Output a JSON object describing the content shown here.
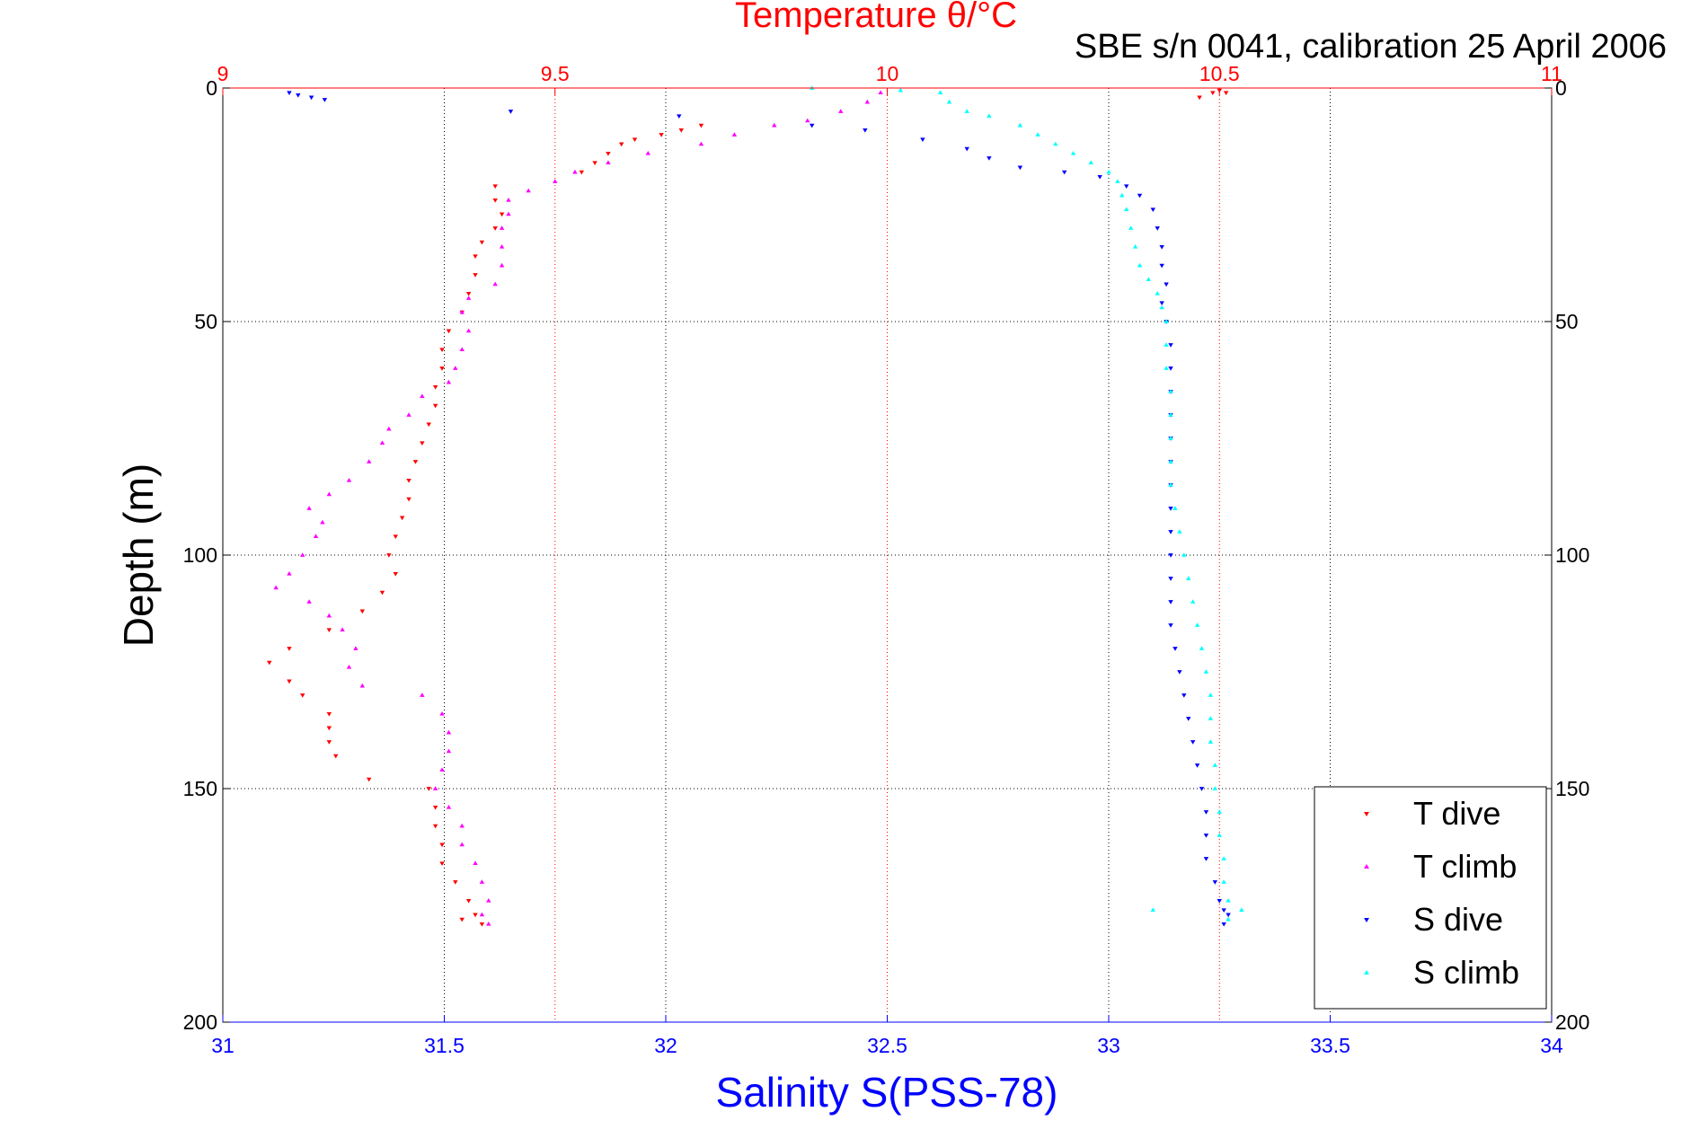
{
  "chart_data": {
    "type": "scatter",
    "title": "Temperature θ/°C",
    "subtitle": "SBE s/n 0041, calibration 25 April 2006",
    "xlabel_bottom": "Salinity S(PSS-78)",
    "xlabel_top": "Temperature θ/°C",
    "ylabel": "Depth (m)",
    "ylim": [
      0,
      200
    ],
    "y_inverted": true,
    "y_ticks": [
      "0",
      "50",
      "100",
      "150",
      "200"
    ],
    "x_bottom_lim": [
      31,
      34
    ],
    "x_bottom_ticks": [
      "31",
      "31.5",
      "32",
      "32.5",
      "33",
      "33.5",
      "34"
    ],
    "x_top_lim": [
      9,
      11
    ],
    "x_top_ticks": [
      "9",
      "9.5",
      "10",
      "10.5",
      "11"
    ],
    "grid": true,
    "legend_position": "bottom-right",
    "colors": {
      "T dive": "#ff0000",
      "T climb": "#ff00ff",
      "S dive": "#0000ff",
      "S climb": "#00ffff",
      "top_axis": "#ff0000",
      "bottom_axis": "#0000ff"
    },
    "series": [
      {
        "name": "T dive",
        "axis": "temperature",
        "marker": "triangle-down",
        "points": [
          [
            10.47,
            2
          ],
          [
            10.49,
            1
          ],
          [
            10.5,
            0.5
          ],
          [
            10.51,
            1
          ],
          [
            9.72,
            8
          ],
          [
            9.69,
            9
          ],
          [
            9.66,
            10
          ],
          [
            9.62,
            11
          ],
          [
            9.6,
            12
          ],
          [
            9.58,
            14
          ],
          [
            9.56,
            16
          ],
          [
            9.54,
            18
          ],
          [
            9.41,
            21
          ],
          [
            9.41,
            24
          ],
          [
            9.42,
            27
          ],
          [
            9.41,
            30
          ],
          [
            9.39,
            33
          ],
          [
            9.38,
            36
          ],
          [
            9.38,
            40
          ],
          [
            9.37,
            44
          ],
          [
            9.36,
            48
          ],
          [
            9.34,
            52
          ],
          [
            9.33,
            56
          ],
          [
            9.33,
            60
          ],
          [
            9.32,
            64
          ],
          [
            9.32,
            68
          ],
          [
            9.31,
            72
          ],
          [
            9.3,
            76
          ],
          [
            9.29,
            80
          ],
          [
            9.28,
            84
          ],
          [
            9.28,
            88
          ],
          [
            9.27,
            92
          ],
          [
            9.26,
            96
          ],
          [
            9.25,
            100
          ],
          [
            9.26,
            104
          ],
          [
            9.24,
            108
          ],
          [
            9.21,
            112
          ],
          [
            9.16,
            116
          ],
          [
            9.1,
            120
          ],
          [
            9.07,
            123
          ],
          [
            9.1,
            127
          ],
          [
            9.12,
            130
          ],
          [
            9.16,
            134
          ],
          [
            9.16,
            137
          ],
          [
            9.16,
            140
          ],
          [
            9.17,
            143
          ],
          [
            9.22,
            148
          ],
          [
            9.31,
            150
          ],
          [
            9.32,
            154
          ],
          [
            9.32,
            158
          ],
          [
            9.33,
            162
          ],
          [
            9.33,
            166
          ],
          [
            9.35,
            170
          ],
          [
            9.37,
            174
          ],
          [
            9.38,
            177
          ],
          [
            9.36,
            178
          ],
          [
            9.39,
            179
          ]
        ]
      },
      {
        "name": "T climb",
        "axis": "temperature",
        "marker": "triangle-up",
        "points": [
          [
            9.99,
            1
          ],
          [
            9.97,
            3
          ],
          [
            9.93,
            5
          ],
          [
            9.88,
            7
          ],
          [
            9.83,
            8
          ],
          [
            9.77,
            10
          ],
          [
            9.72,
            12
          ],
          [
            9.64,
            14
          ],
          [
            9.58,
            16
          ],
          [
            9.53,
            18
          ],
          [
            9.5,
            20
          ],
          [
            9.46,
            22
          ],
          [
            9.43,
            24
          ],
          [
            9.43,
            27
          ],
          [
            9.42,
            30
          ],
          [
            9.42,
            34
          ],
          [
            9.42,
            38
          ],
          [
            9.41,
            42
          ],
          [
            9.37,
            45
          ],
          [
            9.36,
            48
          ],
          [
            9.37,
            52
          ],
          [
            9.36,
            56
          ],
          [
            9.35,
            60
          ],
          [
            9.34,
            63
          ],
          [
            9.3,
            66
          ],
          [
            9.28,
            70
          ],
          [
            9.25,
            73
          ],
          [
            9.24,
            76
          ],
          [
            9.22,
            80
          ],
          [
            9.19,
            84
          ],
          [
            9.16,
            87
          ],
          [
            9.13,
            90
          ],
          [
            9.15,
            93
          ],
          [
            9.14,
            96
          ],
          [
            9.12,
            100
          ],
          [
            9.1,
            104
          ],
          [
            9.08,
            107
          ],
          [
            9.13,
            110
          ],
          [
            9.16,
            113
          ],
          [
            9.18,
            116
          ],
          [
            9.2,
            120
          ],
          [
            9.19,
            124
          ],
          [
            9.21,
            128
          ],
          [
            9.3,
            130
          ],
          [
            9.33,
            134
          ],
          [
            9.34,
            138
          ],
          [
            9.34,
            142
          ],
          [
            9.33,
            146
          ],
          [
            9.32,
            150
          ],
          [
            9.34,
            154
          ],
          [
            9.36,
            158
          ],
          [
            9.36,
            162
          ],
          [
            9.38,
            166
          ],
          [
            9.39,
            170
          ],
          [
            9.4,
            174
          ],
          [
            9.39,
            177
          ],
          [
            9.4,
            179
          ]
        ]
      },
      {
        "name": "S dive",
        "axis": "salinity",
        "marker": "triangle-down",
        "points": [
          [
            31.15,
            1
          ],
          [
            31.17,
            1.5
          ],
          [
            31.2,
            2
          ],
          [
            31.23,
            2.5
          ],
          [
            31.65,
            5
          ],
          [
            32.03,
            6
          ],
          [
            32.33,
            8
          ],
          [
            32.45,
            9
          ],
          [
            32.58,
            11
          ],
          [
            32.68,
            13
          ],
          [
            32.73,
            15
          ],
          [
            32.8,
            17
          ],
          [
            32.9,
            18
          ],
          [
            32.98,
            19
          ],
          [
            33.04,
            21
          ],
          [
            33.07,
            23
          ],
          [
            33.1,
            26
          ],
          [
            33.11,
            30
          ],
          [
            33.12,
            34
          ],
          [
            33.12,
            38
          ],
          [
            33.13,
            42
          ],
          [
            33.12,
            46
          ],
          [
            33.13,
            50
          ],
          [
            33.14,
            55
          ],
          [
            33.14,
            60
          ],
          [
            33.14,
            65
          ],
          [
            33.14,
            70
          ],
          [
            33.14,
            75
          ],
          [
            33.14,
            80
          ],
          [
            33.14,
            85
          ],
          [
            33.14,
            90
          ],
          [
            33.14,
            95
          ],
          [
            33.14,
            100
          ],
          [
            33.14,
            105
          ],
          [
            33.14,
            110
          ],
          [
            33.14,
            115
          ],
          [
            33.15,
            120
          ],
          [
            33.16,
            125
          ],
          [
            33.17,
            130
          ],
          [
            33.18,
            135
          ],
          [
            33.19,
            140
          ],
          [
            33.2,
            145
          ],
          [
            33.21,
            150
          ],
          [
            33.22,
            155
          ],
          [
            33.22,
            160
          ],
          [
            33.22,
            165
          ],
          [
            33.24,
            170
          ],
          [
            33.25,
            174
          ],
          [
            33.26,
            176
          ],
          [
            33.27,
            177
          ],
          [
            33.26,
            179
          ]
        ]
      },
      {
        "name": "S climb",
        "axis": "salinity",
        "marker": "triangle-up",
        "points": [
          [
            32.33,
            0
          ],
          [
            32.53,
            0.5
          ],
          [
            32.62,
            1
          ],
          [
            32.64,
            3
          ],
          [
            32.68,
            5
          ],
          [
            32.73,
            6
          ],
          [
            32.8,
            8
          ],
          [
            32.84,
            10
          ],
          [
            32.88,
            12
          ],
          [
            32.92,
            14
          ],
          [
            32.96,
            16
          ],
          [
            33,
            18
          ],
          [
            33.02,
            20
          ],
          [
            33.03,
            23
          ],
          [
            33.04,
            26
          ],
          [
            33.05,
            30
          ],
          [
            33.06,
            34
          ],
          [
            33.07,
            38
          ],
          [
            33.09,
            41
          ],
          [
            33.11,
            44
          ],
          [
            33.12,
            47
          ],
          [
            33.13,
            50
          ],
          [
            33.13,
            55
          ],
          [
            33.13,
            60
          ],
          [
            33.14,
            65
          ],
          [
            33.14,
            70
          ],
          [
            33.14,
            75
          ],
          [
            33.14,
            80
          ],
          [
            33.14,
            85
          ],
          [
            33.15,
            90
          ],
          [
            33.16,
            95
          ],
          [
            33.17,
            100
          ],
          [
            33.18,
            105
          ],
          [
            33.19,
            110
          ],
          [
            33.2,
            115
          ],
          [
            33.21,
            120
          ],
          [
            33.22,
            125
          ],
          [
            33.23,
            130
          ],
          [
            33.23,
            135
          ],
          [
            33.23,
            140
          ],
          [
            33.24,
            145
          ],
          [
            33.24,
            150
          ],
          [
            33.25,
            155
          ],
          [
            33.25,
            160
          ],
          [
            33.26,
            165
          ],
          [
            33.26,
            170
          ],
          [
            33.27,
            174
          ],
          [
            33.1,
            176
          ],
          [
            33.3,
            176
          ],
          [
            33.27,
            178
          ]
        ]
      }
    ]
  }
}
